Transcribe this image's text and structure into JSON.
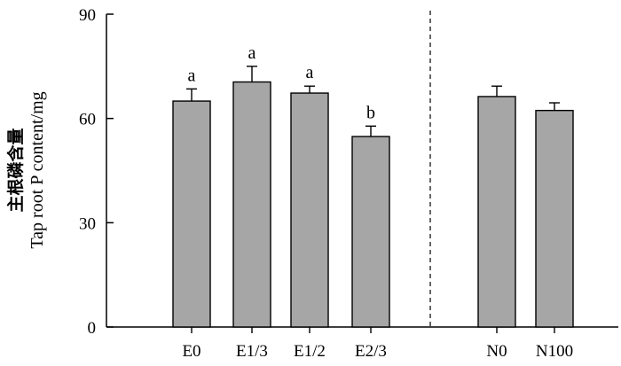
{
  "chart_data": {
    "type": "bar",
    "ylabel_cn": "主根磷含量",
    "ylabel": "Tap root P content/mg",
    "ylim": [
      0,
      90
    ],
    "yticks": [
      "0",
      "30",
      "60",
      "90"
    ],
    "ytick_values": [
      0,
      30,
      60,
      90
    ],
    "groups": [
      {
        "categories": [
          "E0",
          "E1/3",
          "E1/2",
          "E2/3"
        ],
        "values": [
          65,
          70.5,
          67.3,
          54.8
        ],
        "errors": [
          3.5,
          4.5,
          2.0,
          3.0
        ],
        "significance": [
          "a",
          "a",
          "a",
          "b"
        ]
      },
      {
        "categories": [
          "N0",
          "N100"
        ],
        "values": [
          66.3,
          62.3
        ],
        "errors": [
          3.0,
          2.2
        ],
        "significance": [
          "",
          ""
        ]
      }
    ],
    "bar_color": "#a6a6a6",
    "group_separator": "dashed",
    "grid": false,
    "legend": "none"
  }
}
